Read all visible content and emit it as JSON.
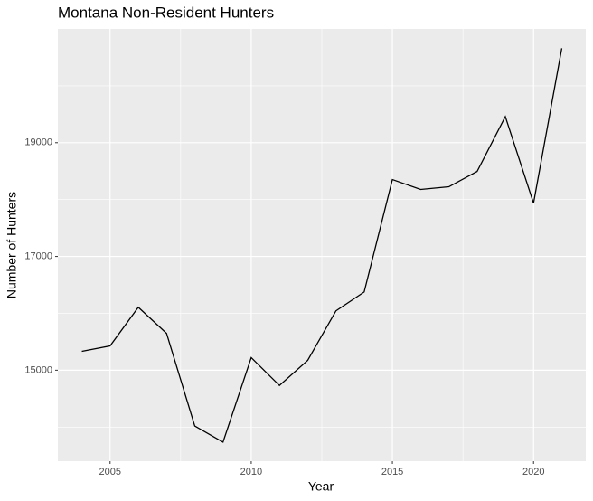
{
  "chart_data": {
    "type": "line",
    "title": "Montana Non-Resident Hunters",
    "x_label": "Year",
    "y_label": "Number of Hunters",
    "x": [
      2004,
      2005,
      2006,
      2007,
      2008,
      2009,
      2010,
      2011,
      2012,
      2013,
      2014,
      2015,
      2016,
      2017,
      2018,
      2019,
      2020,
      2021
    ],
    "series": [
      {
        "name": "Number of Hunters",
        "color": "#000000",
        "values": [
          15332,
          15427,
          16107,
          15648,
          14020,
          13735,
          15221,
          14731,
          15174,
          16043,
          16375,
          18352,
          18178,
          18225,
          18494,
          19458,
          17937,
          20660
        ]
      }
    ],
    "xlim": [
      2003.15,
      2021.85
    ],
    "xticks": [
      2005,
      2010,
      2015,
      2020
    ],
    "ylim": [
      13400,
      21000
    ],
    "yticks": [
      15000,
      17000,
      19000
    ],
    "grid": true
  }
}
